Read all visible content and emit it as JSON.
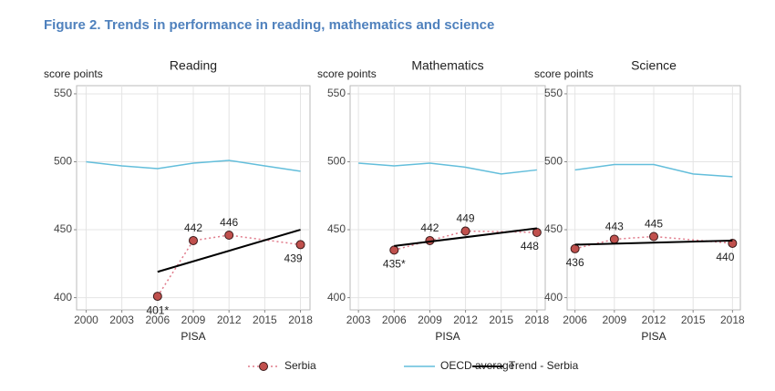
{
  "title": "Figure 2. Trends in performance in reading, mathematics and science",
  "legend": "bottom",
  "chart_data": [
    {
      "type": "line",
      "title": "Reading",
      "ylabel": "score points",
      "xlabel": "PISA",
      "xlim": [
        1999.2,
        2018.8
      ],
      "xticks": [
        2000,
        2003,
        2006,
        2009,
        2012,
        2015,
        2018
      ],
      "ylim": [
        391,
        556
      ],
      "yticks": [
        400,
        450,
        500,
        550
      ],
      "grid": true,
      "series": [
        {
          "name": "Serbia",
          "color": "#c0504d",
          "x": [
            2006,
            2009,
            2012,
            2018
          ],
          "values": [
            401,
            442,
            446,
            439
          ],
          "value_labels": [
            "401*",
            "442",
            "446",
            "439"
          ]
        },
        {
          "name": "OECD average",
          "color": "#63bedb",
          "x": [
            2000,
            2003,
            2006,
            2009,
            2012,
            2015,
            2018
          ],
          "values": [
            500,
            497,
            495,
            499,
            501,
            497,
            493
          ]
        },
        {
          "name": "Trend - Serbia",
          "color": "#000000",
          "x": [
            2006,
            2018
          ],
          "values": [
            419,
            450
          ]
        }
      ]
    },
    {
      "type": "line",
      "title": "Mathematics",
      "ylabel": "score points",
      "xlabel": "PISA",
      "xlim": [
        2002.3,
        2018.7
      ],
      "xticks": [
        2003,
        2006,
        2009,
        2012,
        2015,
        2018
      ],
      "ylim": [
        391,
        556
      ],
      "yticks": [
        400,
        450,
        500,
        550
      ],
      "grid": true,
      "series": [
        {
          "name": "Serbia",
          "color": "#c0504d",
          "x": [
            2006,
            2009,
            2012,
            2018
          ],
          "values": [
            435,
            442,
            449,
            448
          ],
          "value_labels": [
            "435*",
            "442",
            "449",
            "448"
          ]
        },
        {
          "name": "OECD average",
          "color": "#63bedb",
          "x": [
            2003,
            2006,
            2009,
            2012,
            2015,
            2018
          ],
          "values": [
            499,
            497,
            499,
            496,
            491,
            494
          ]
        },
        {
          "name": "Trend - Serbia",
          "color": "#000000",
          "x": [
            2006,
            2018
          ],
          "values": [
            438,
            451
          ]
        }
      ]
    },
    {
      "type": "line",
      "title": "Science",
      "ylabel": "score points",
      "xlabel": "PISA",
      "xlim": [
        2005.4,
        2018.6
      ],
      "xticks": [
        2006,
        2009,
        2012,
        2015,
        2018
      ],
      "ylim": [
        391,
        556
      ],
      "yticks": [
        400,
        450,
        500,
        550
      ],
      "grid": true,
      "series": [
        {
          "name": "Serbia",
          "color": "#c0504d",
          "x": [
            2006,
            2009,
            2012,
            2018
          ],
          "values": [
            436,
            443,
            445,
            440
          ]
        },
        {
          "name": "OECD average",
          "color": "#63bedb",
          "x": [
            2006,
            2009,
            2012,
            2015,
            2018
          ],
          "values": [
            494,
            498,
            498,
            491,
            489
          ]
        },
        {
          "name": "Trend - Serbia",
          "color": "#000000",
          "x": [
            2006,
            2018
          ],
          "values": [
            439,
            442
          ]
        }
      ]
    }
  ]
}
